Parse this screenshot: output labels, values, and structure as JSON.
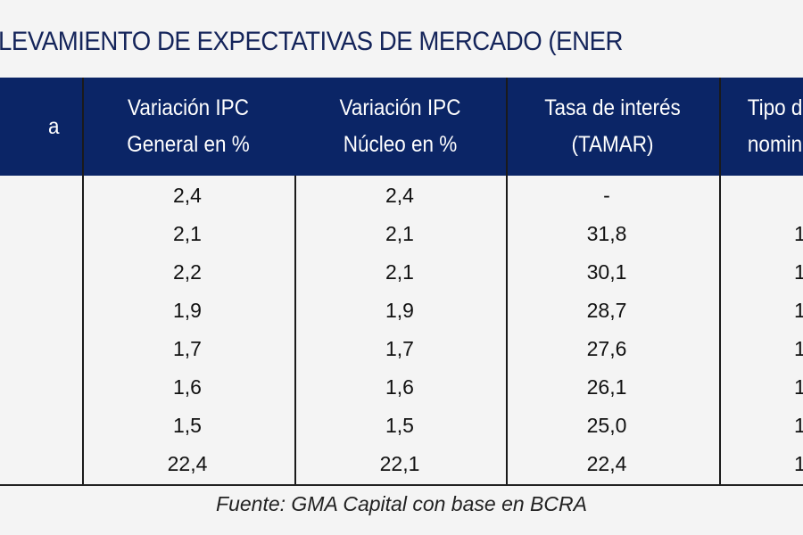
{
  "title": "LEVAMIENTO DE EXPECTATIVAS DE MERCADO (ENER",
  "table": {
    "headers": [
      "a",
      "Variación IPC\nGeneral en %",
      "Variación IPC\nNúcleo en %",
      "Tasa de interés\n(TAMAR)",
      "Tipo d\nnomin"
    ],
    "rows": [
      [
        "",
        "2,4",
        "2,4",
        "-",
        ""
      ],
      [
        "",
        "2,1",
        "2,1",
        "31,8",
        "1"
      ],
      [
        "",
        "2,2",
        "2,1",
        "30,1",
        "1"
      ],
      [
        "",
        "1,9",
        "1,9",
        "28,7",
        "1"
      ],
      [
        "",
        "1,7",
        "1,7",
        "27,6",
        "1"
      ],
      [
        "",
        "1,6",
        "1,6",
        "26,1",
        "1"
      ],
      [
        "",
        "1,5",
        "1,5",
        "25,0",
        "1"
      ],
      [
        "",
        "22,4",
        "22,1",
        "22,4",
        "1"
      ]
    ]
  },
  "footer": "Fuente: GMA Capital con base en BCRA",
  "colors": {
    "header_bg": "#0b2566",
    "title": "#14245a"
  }
}
